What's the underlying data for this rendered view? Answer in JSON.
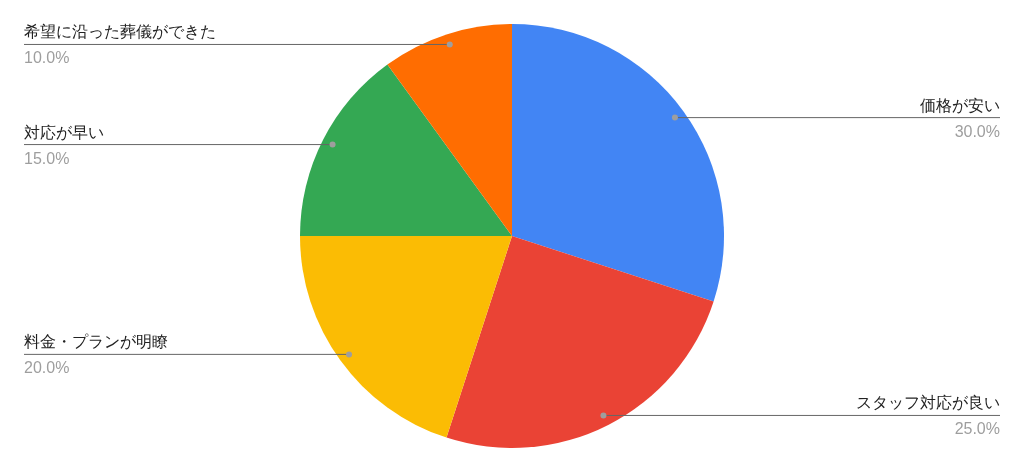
{
  "chart_data": {
    "type": "pie",
    "categories": [
      "価格が安い",
      "スタッフ対応が良い",
      "料金・プランが明瞭",
      "対応が早い",
      "希望に沿った葬儀ができた"
    ],
    "values": [
      30,
      25,
      20,
      15,
      10
    ],
    "colors": [
      "#4285f4",
      "#ea4335",
      "#fbbc04",
      "#34a853",
      "#ff6d01"
    ],
    "value_labels": [
      "30.0%",
      "25.0%",
      "20.0%",
      "15.0%",
      "10.0%"
    ]
  }
}
